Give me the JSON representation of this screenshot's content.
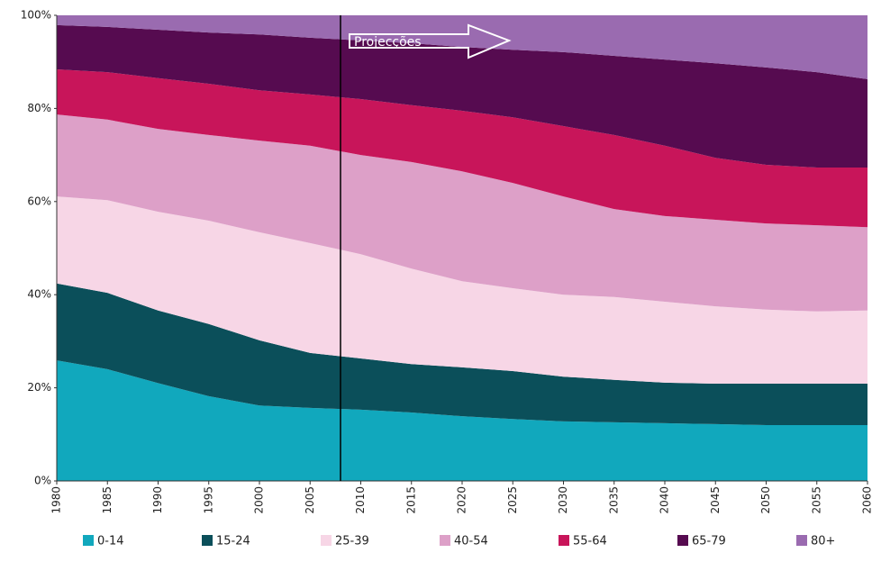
{
  "chart_data": {
    "type": "stacked_area",
    "x": [
      1980,
      1985,
      1990,
      1995,
      2000,
      2005,
      2010,
      2015,
      2020,
      2025,
      2030,
      2035,
      2040,
      2045,
      2050,
      2055,
      2060
    ],
    "series": [
      {
        "name": "0-14",
        "color": "#11a8bd",
        "values": [
          25.9,
          24.0,
          21.0,
          18.2,
          16.2,
          15.7,
          15.3,
          14.7,
          13.9,
          13.3,
          12.8,
          12.6,
          12.4,
          12.2,
          12.0,
          12.0,
          12.0
        ]
      },
      {
        "name": "15-24",
        "color": "#0b4f5a",
        "values": [
          16.5,
          16.4,
          15.6,
          15.5,
          14.0,
          11.8,
          11.0,
          10.4,
          10.5,
          10.3,
          9.6,
          9.1,
          8.7,
          8.7,
          8.9,
          8.9,
          8.9
        ]
      },
      {
        "name": "25-39",
        "color": "#f7d6e6",
        "values": [
          18.7,
          19.9,
          21.2,
          22.2,
          23.2,
          23.6,
          22.4,
          20.5,
          18.5,
          17.8,
          17.6,
          17.8,
          17.4,
          16.6,
          15.9,
          15.5,
          15.7
        ]
      },
      {
        "name": "40-54",
        "color": "#dda0c8",
        "values": [
          17.6,
          17.3,
          17.8,
          18.4,
          19.7,
          20.9,
          21.3,
          22.9,
          23.6,
          22.6,
          21.1,
          18.9,
          18.4,
          18.6,
          18.5,
          18.5,
          17.9
        ]
      },
      {
        "name": "55-64",
        "color": "#c8155a",
        "values": [
          9.7,
          10.2,
          10.9,
          11.0,
          10.8,
          11.0,
          12.0,
          12.2,
          13.0,
          14.1,
          15.1,
          15.9,
          15.1,
          13.3,
          12.6,
          12.4,
          12.8
        ]
      },
      {
        "name": "65-79",
        "color": "#560b50",
        "values": [
          9.5,
          9.7,
          10.4,
          11.0,
          12.0,
          12.2,
          12.6,
          13.3,
          13.7,
          14.5,
          15.9,
          17.0,
          18.5,
          20.3,
          20.9,
          20.5,
          19.0
        ]
      },
      {
        "name": "80+",
        "color": "#9a6bb0",
        "values": [
          2.1,
          2.5,
          3.1,
          3.7,
          4.1,
          4.8,
          5.4,
          6.0,
          6.8,
          7.4,
          7.9,
          8.7,
          9.5,
          10.3,
          11.2,
          12.2,
          13.7
        ]
      }
    ],
    "xlim": [
      1980,
      2060
    ],
    "xticks": [
      1980,
      1985,
      1990,
      1995,
      2000,
      2005,
      2010,
      2015,
      2020,
      2025,
      2030,
      2035,
      2040,
      2045,
      2050,
      2055,
      2060
    ],
    "ylim": [
      0,
      100
    ],
    "yticks": [
      {
        "value": 0,
        "label": "0%"
      },
      {
        "value": 20,
        "label": "20%"
      },
      {
        "value": 40,
        "label": "40%"
      },
      {
        "value": 60,
        "label": "60%"
      },
      {
        "value": 80,
        "label": "80%"
      },
      {
        "value": 100,
        "label": "100%"
      }
    ],
    "annotation": {
      "text": "Projecções",
      "x": 2008
    },
    "legend": "bottom"
  }
}
